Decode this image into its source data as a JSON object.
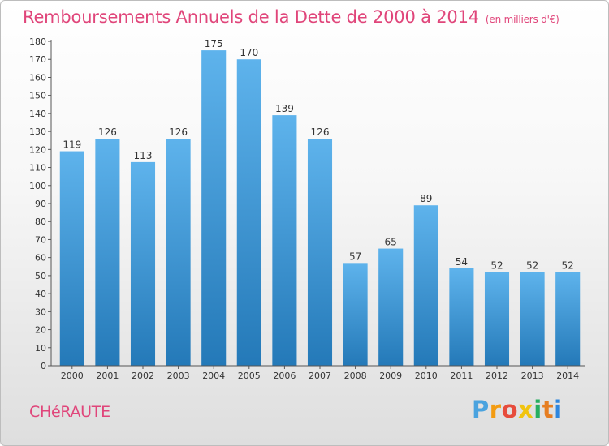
{
  "header": {
    "title": "Remboursements Annuels de la Dette de 2000 à 2014",
    "unit": "(en milliers d'€)"
  },
  "footer": {
    "commune": "CHéRAUTE",
    "brand_letters": [
      "P",
      "r",
      "o",
      "x",
      "i",
      "t",
      "i"
    ],
    "brand_colors": [
      "#4aa3df",
      "#f39c12",
      "#e74c3c",
      "#f1c40f",
      "#27ae60",
      "#e67e22",
      "#2e86de"
    ]
  },
  "colors": {
    "accent": "#e0457a",
    "bar_top": "#5eb3ec",
    "bar_bottom": "#2479b8"
  },
  "chart_data": {
    "type": "bar",
    "categories": [
      "2000",
      "2001",
      "2002",
      "2003",
      "2004",
      "2005",
      "2006",
      "2007",
      "2008",
      "2009",
      "2010",
      "2011",
      "2012",
      "2013",
      "2014"
    ],
    "values": [
      119,
      126,
      113,
      126,
      175,
      170,
      139,
      126,
      57,
      65,
      89,
      54,
      52,
      52,
      52
    ],
    "ylim": [
      0,
      180
    ],
    "yticks": [
      0,
      10,
      20,
      30,
      40,
      50,
      60,
      70,
      80,
      90,
      100,
      110,
      120,
      130,
      140,
      150,
      160,
      170,
      180
    ],
    "grid": false
  }
}
